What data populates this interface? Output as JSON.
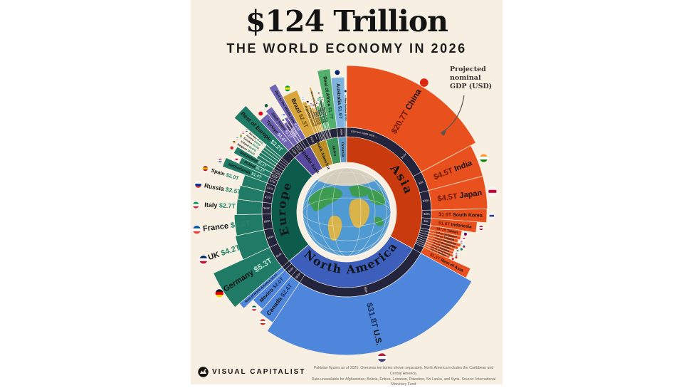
{
  "title": "$124 Trillion",
  "subtitle": "THE WORLD ECONOMY IN 2026",
  "annotation": {
    "line1": "Projected",
    "line2": "nominal",
    "line3": "GDP (USD)"
  },
  "ring_label": "GDP per capita 2026 →",
  "footer": {
    "brand": "VISUAL CAPITALIST",
    "note1": "Pakistan figures as of 2025. Overseas territories shown separately. North America includes the Caribbean and Central America.",
    "note2": "Data unavailable for Afghanistan, Bolivia, Eritrea, Lebanon, Palestine, Sri Lanka, and Syria. Source: International Monetary Fund"
  },
  "colors": {
    "page_bg": "#ffffff",
    "panel_bg": "#F7F0E2",
    "title_color": "#131313",
    "chip": "#23233B",
    "chip_text": "#F4E8D8",
    "globe_ocean": "#4F9AD3",
    "globe_land_green": "#3E9C52",
    "globe_land_tan": "#D8B44A",
    "globe_cap": "#D9D0BC"
  },
  "chart_data": {
    "type": "sunburst",
    "title": "$124 Trillion — The World Economy in 2026",
    "unit": "USD, projected nominal GDP",
    "inner_ring": "GDP per capita 2026",
    "total_label": "$124T",
    "regions": [
      {
        "name": "Asia",
        "color": "#E8511E",
        "band": "#C93A0E",
        "value_in": "#701800",
        "value_out": "#A33008",
        "countries": [
          {
            "n": "China",
            "v": "$20.7T",
            "pc": "$13K",
            "chip_pos": 0.74,
            "f": [
              "#de2910",
              "#de2910",
              "#de2910"
            ],
            "lp": "in"
          },
          {
            "n": "India",
            "v": "$4.5T",
            "pc": "$3K",
            "f": [
              "#ff9933",
              "#ffffff",
              "#128807"
            ],
            "lp": "in"
          },
          {
            "n": "Japan",
            "v": "$4.5T",
            "pc": "$36K",
            "f": [
              "#f0f0f0",
              "#cc0033",
              "#f0f0f0"
            ],
            "lp": "in"
          },
          {
            "n": "South Korea",
            "v": "$1.9T",
            "pc": "$38K",
            "f": [
              "#f0f0f0",
              "#2d3f8f",
              "#f0f0f0"
            ],
            "lp": "in"
          },
          {
            "n": "Indonesia",
            "v": "$1.6T",
            "pc": "$6K",
            "f": [
              "#cc0033",
              "#ffffff",
              "#cc0033"
            ],
            "lp": "in"
          },
          {
            "n": "Taiwan",
            "v": "$977B",
            "f": [
              "#002d87",
              "#cc0033"
            ],
            "lp": "in"
          },
          {
            "n": "Singapore",
            "v": "$600B",
            "f": [
              "#cc0033",
              "#ffffff"
            ],
            "lp": "in"
          },
          {
            "n": "Thailand",
            "v": "$580B",
            "f": [
              "#cc0033",
              "#ffffff",
              "#2d2a4a"
            ],
            "lp": "in"
          },
          {
            "n": "Philippines",
            "v": "$550B",
            "f": [
              "#0038a8",
              "#ce1126"
            ],
            "lp": "in"
          },
          {
            "n": "Bangladesh",
            "v": "$530B",
            "f": [
              "#006a4e",
              "#006a4e"
            ],
            "lp": "in"
          },
          {
            "n": "Pakistan",
            "v": "$510B",
            "f": [
              "#01411c",
              "#ffffff"
            ],
            "lp": "in"
          },
          {
            "n": "Malaysia",
            "v": "$500B",
            "f": [
              "#cc0001",
              "#ffffff",
              "#010066"
            ],
            "lp": "in"
          },
          {
            "n": "Hong Kong",
            "v": "$460B",
            "f": [
              "#de2910",
              "#de2910"
            ],
            "lp": "in"
          },
          {
            "n": "Vietnam",
            "v": "$450B",
            "f": [
              "#da251d",
              "#da251d"
            ],
            "lp": "in"
          },
          {
            "n": "Rest of Asia",
            "v": "$1.5T",
            "lp": "in"
          }
        ]
      },
      {
        "name": "North America",
        "color": "#4E86DC",
        "band": "#3D5FBB",
        "value_in": "#17315F",
        "value_out": "#17315F",
        "countries": [
          {
            "n": "U.S.",
            "v": "$31.8T",
            "pc": "$89K",
            "f": [
              "#b22234",
              "#ffffff",
              "#3c3b6e"
            ],
            "lp": "in"
          },
          {
            "n": "Canada",
            "v": "$2.4T",
            "pc": "$53K",
            "f": [
              "#d52b1e",
              "#ffffff",
              "#d52b1e"
            ],
            "lp": "in"
          },
          {
            "n": "Mexico",
            "v": "$2.0T",
            "pc": "$18K",
            "f": [
              "#006847",
              "#ffffff",
              "#ce1126"
            ],
            "lp": "in"
          },
          {
            "n": "Rest of North America",
            "v": "$0.9T",
            "lp": "in"
          }
        ]
      },
      {
        "name": "Europe",
        "color": "#1F7A66",
        "band": "#0C5B4B",
        "value_in": "#BFE6D2",
        "value_out": "#27846A",
        "countries": [
          {
            "n": "Germany",
            "v": "$5.3T",
            "pc": "$64K",
            "f": [
              "#1a1a1a",
              "#dd0000",
              "#ffce00"
            ],
            "lp": "in"
          },
          {
            "n": "UK",
            "v": "$4.2T",
            "pc": "$60K",
            "f": [
              "#012169",
              "#ffffff",
              "#c8102e"
            ],
            "lp": "out"
          },
          {
            "n": "France",
            "v": "$3.6T",
            "pc": "$52K",
            "f": [
              "#0055a4",
              "#ffffff",
              "#ef4135"
            ],
            "lp": "out"
          },
          {
            "n": "Italy",
            "v": "$2.7T",
            "pc": "$48K",
            "f": [
              "#009246",
              "#ffffff",
              "#ce2b37"
            ],
            "lp": "out"
          },
          {
            "n": "Russia",
            "v": "$2.5T",
            "pc": "$17K",
            "f": [
              "#ffffff",
              "#0039a6",
              "#d52b1e"
            ],
            "lp": "out"
          },
          {
            "n": "Spain",
            "v": "$2.0T",
            "pc": "$37K",
            "f": [
              "#aa151b",
              "#f1bf00",
              "#aa151b"
            ],
            "lp": "out"
          },
          {
            "n": "Netherlands",
            "v": "$1.4T",
            "pc": "$74K",
            "f": [
              "#ae1c28",
              "#ffffff",
              "#21468b"
            ],
            "lp": "in"
          },
          {
            "n": "Poland",
            "v": "$1.1T",
            "pc": "$28K",
            "f": [
              "#ffffff",
              "#dc143c"
            ],
            "lp": "in"
          },
          {
            "n": "Switzerland",
            "v": "$1.1T",
            "pc": "$118K",
            "f": [
              "#d52b1e",
              "#d52b1e"
            ],
            "lp": "in"
          },
          {
            "n": "Belgium",
            "v": "$680B",
            "f": [
              "#1a1a1a",
              "#fdda24",
              "#ef3340"
            ],
            "lp": "out"
          },
          {
            "n": "Ireland",
            "v": "$640B",
            "f": [
              "#169b62",
              "#ffffff",
              "#ff883e"
            ],
            "lp": "out"
          },
          {
            "n": "Sweden",
            "v": "$630B",
            "f": [
              "#006aa7",
              "#fecc00",
              "#006aa7"
            ],
            "lp": "out"
          },
          {
            "n": "Austria",
            "v": "$560B",
            "f": [
              "#ed2939",
              "#ffffff",
              "#ed2939"
            ],
            "lp": "out"
          },
          {
            "n": "Norway",
            "v": "$540B",
            "f": [
              "#ba0c2f",
              "#ffffff",
              "#00205b"
            ],
            "lp": "out"
          },
          {
            "n": "Rest of Europe",
            "v": "$2.2T",
            "lp": "in"
          }
        ]
      },
      {
        "name": "Middle East",
        "color": "#7064B4",
        "band": "#57499E",
        "value_in": "#DED9F4",
        "value_out": "#57499E",
        "countries": [
          {
            "n": "Türkiye",
            "v": "$1.6T",
            "pc": "$18K",
            "f": [
              "#e30a17",
              "#e30a17"
            ],
            "lp": "in"
          },
          {
            "n": "Saudi Arabia",
            "v": "$1.1T",
            "pc": "$31K",
            "f": [
              "#165d31",
              "#165d31"
            ],
            "lp": "in"
          },
          {
            "n": "UAE",
            "v": "$580B",
            "f": [
              "#00732f",
              "#ffffff",
              "#1a1a1a"
            ],
            "lp": "in"
          },
          {
            "n": "Israel",
            "v": "$570B",
            "f": [
              "#ffffff",
              "#0038b8",
              "#ffffff"
            ],
            "lp": "in"
          },
          {
            "n": "Rest of the Middle East",
            "v": "$1.0T",
            "lp": "in"
          }
        ]
      },
      {
        "name": "South America",
        "color": "#D9A63C",
        "band": "#BE8E26",
        "value_in": "#6E4E0A",
        "value_out": "#6E4E0A",
        "countries": [
          {
            "n": "Brazil",
            "v": "$2.3T",
            "pc": "$11K",
            "f": [
              "#009b3a",
              "#fedf00",
              "#009b3a"
            ],
            "lp": "in"
          },
          {
            "n": "Argentina",
            "v": "$688B",
            "f": [
              "#74acdf",
              "#ffffff",
              "#74acdf"
            ],
            "lp": "in"
          },
          {
            "n": "Colombia",
            "v": "$440B",
            "f": [
              "#fcd116",
              "#003893",
              "#ce1126"
            ],
            "lp": "in"
          },
          {
            "n": "Chile",
            "v": "$360B",
            "f": [
              "#d52b1e",
              "#ffffff",
              "#0039a6"
            ],
            "lp": "in"
          },
          {
            "n": "Peru",
            "v": "$310B",
            "f": [
              "#d91023",
              "#ffffff",
              "#d91023"
            ],
            "lp": "in"
          },
          {
            "n": "Rest of South America",
            "v": "$290B",
            "lp": "in"
          }
        ]
      },
      {
        "name": "Africa",
        "color": "#53B06F",
        "band": "#3C9458",
        "value_in": "#0D4F2C",
        "value_out": "#0D4F2C",
        "countries": [
          {
            "n": "Egypt",
            "v": "$420B",
            "f": [
              "#ce1126",
              "#ffffff",
              "#1a1a1a"
            ],
            "lp": "in"
          },
          {
            "n": "Nigeria",
            "v": "$280B",
            "f": [
              "#008751",
              "#ffffff",
              "#008751"
            ],
            "lp": "in"
          },
          {
            "n": "South Africa",
            "v": "$430B",
            "f": [
              "#007a4d",
              "#ffffff",
              "#de3831"
            ],
            "lp": "in"
          },
          {
            "n": "Algeria",
            "v": "$270B",
            "f": [
              "#006233",
              "#ffffff",
              "#d21034"
            ],
            "lp": "in"
          },
          {
            "n": "Rest of Africa",
            "v": "$1.7T",
            "lp": "in"
          }
        ]
      },
      {
        "name": "Oceania",
        "color": "#7FB2DC",
        "band": "#6297C4",
        "value_in": "#173F66",
        "value_out": "#173F66",
        "countries": [
          {
            "n": "Australia",
            "v": "$1.9T",
            "pc": "$69K",
            "f": [
              "#012169",
              "#012169"
            ],
            "lp": "in"
          },
          {
            "n": "New Zealand",
            "v": "$270B",
            "f": [
              "#012169",
              "#012169"
            ],
            "lp": "in"
          },
          {
            "n": "Rest of Oceania",
            "v": "$60B",
            "lp": "in"
          }
        ]
      }
    ]
  }
}
